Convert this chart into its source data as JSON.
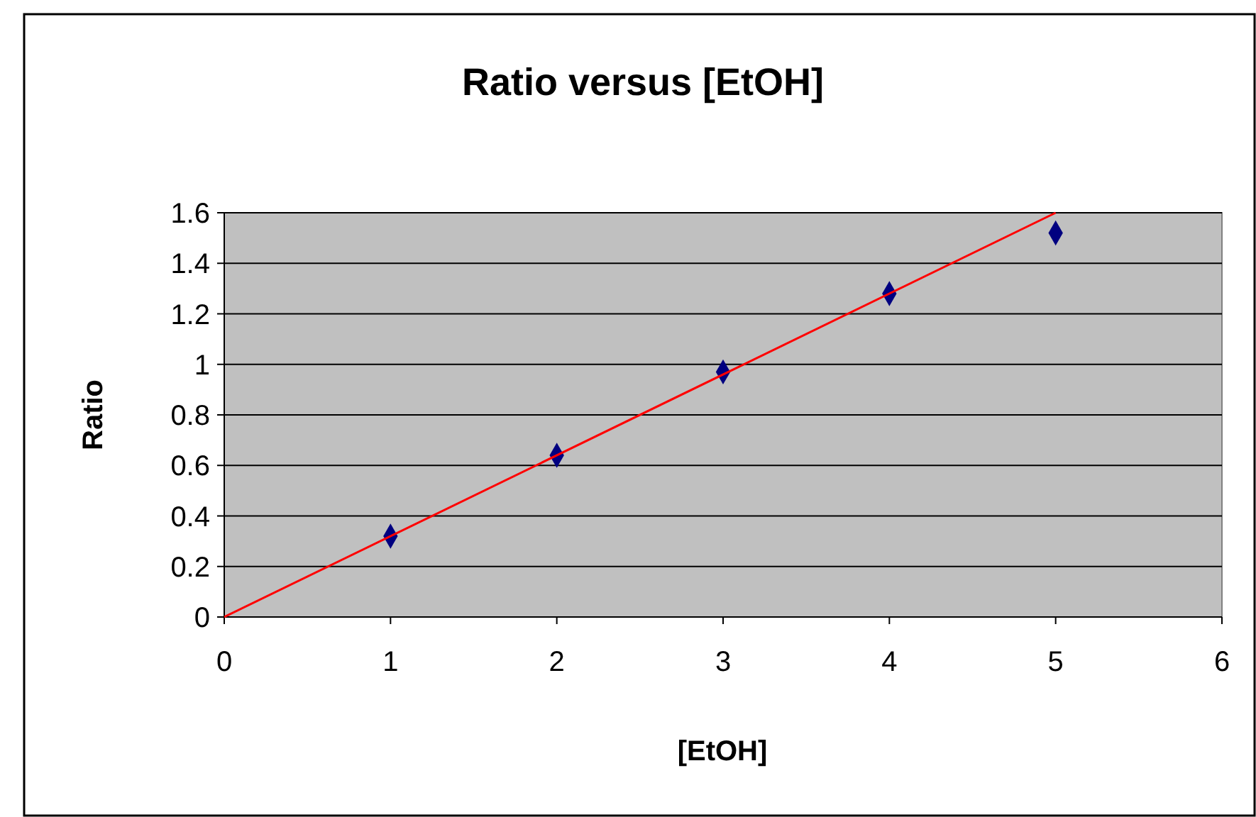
{
  "chart_data": {
    "type": "scatter",
    "title": "Ratio versus [EtOH]",
    "xlabel": "[EtOH]",
    "ylabel": "Ratio",
    "xlim": [
      0,
      6
    ],
    "xticks": [
      0,
      1,
      2,
      3,
      4,
      5,
      6
    ],
    "ylim": [
      0,
      1.6
    ],
    "yticks": [
      0,
      0.2,
      0.4,
      0.6,
      0.8,
      1,
      1.2,
      1.4,
      1.6
    ],
    "grid": "y",
    "series": [
      {
        "x": [
          1,
          2,
          3,
          4,
          5
        ],
        "values": [
          0.32,
          0.64,
          0.97,
          1.28,
          1.52
        ],
        "color": "#000080",
        "marker": "diamond"
      },
      {
        "type": "line",
        "x": [
          0,
          5
        ],
        "values": [
          0,
          1.6
        ],
        "color": "#ff0000",
        "marker": "none",
        "line_style": "solid"
      }
    ]
  }
}
